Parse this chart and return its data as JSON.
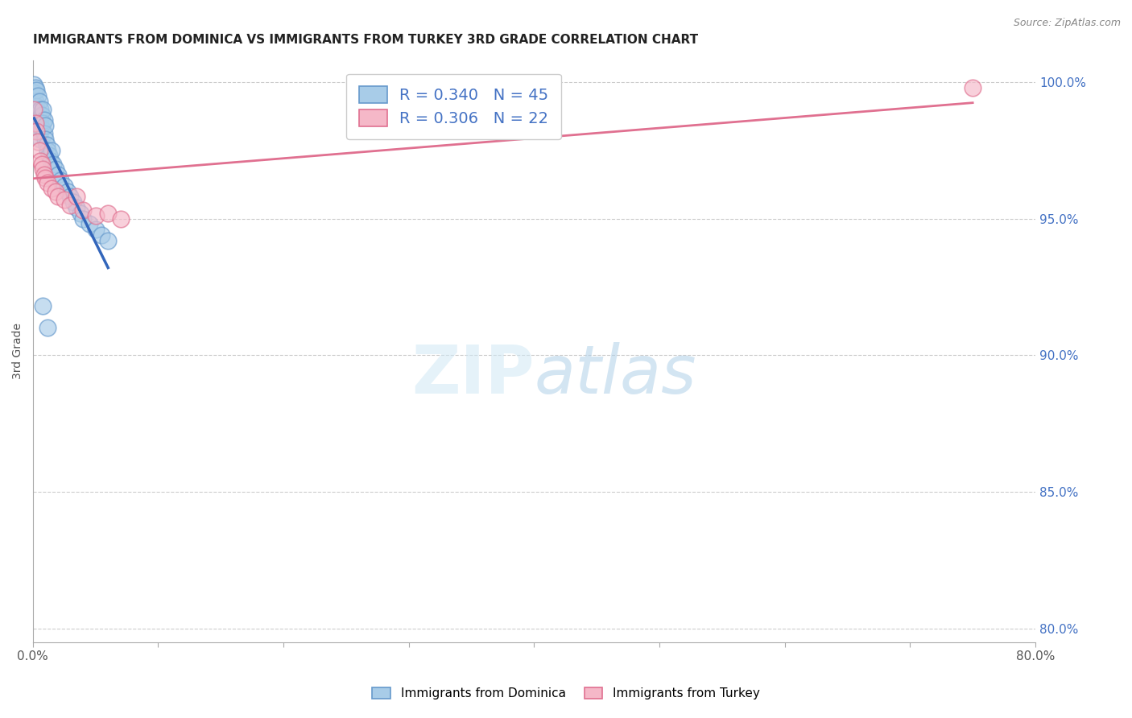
{
  "title": "IMMIGRANTS FROM DOMINICA VS IMMIGRANTS FROM TURKEY 3RD GRADE CORRELATION CHART",
  "source": "Source: ZipAtlas.com",
  "ylabel": "3rd Grade",
  "watermark": "ZIPatlas",
  "x_min": 0.0,
  "x_max": 0.8,
  "y_min": 0.795,
  "y_max": 1.008,
  "x_ticks": [
    0.0,
    0.1,
    0.2,
    0.3,
    0.4,
    0.5,
    0.6,
    0.7,
    0.8
  ],
  "x_tick_labels": [
    "0.0%",
    "",
    "",
    "",
    "",
    "",
    "",
    "",
    "80.0%"
  ],
  "y_ticks": [
    0.8,
    0.85,
    0.9,
    0.95,
    1.0
  ],
  "y_tick_labels": [
    "80.0%",
    "85.0%",
    "90.0%",
    "95.0%",
    "100.0%"
  ],
  "dominica_color": "#a8cce8",
  "turkey_color": "#f5b8c8",
  "dominica_edge": "#6699cc",
  "turkey_edge": "#e07090",
  "trend_dominica_color": "#3366bb",
  "trend_turkey_color": "#e07090",
  "R_dominica": 0.34,
  "N_dominica": 45,
  "R_turkey": 0.306,
  "N_turkey": 22,
  "background_color": "#ffffff",
  "grid_color": "#cccccc",
  "title_fontsize": 11,
  "label_fontsize": 10,
  "tick_fontsize": 11,
  "legend_label_dominica": "Immigrants from Dominica",
  "legend_label_turkey": "Immigrants from Turkey",
  "dom_x": [
    0.001,
    0.001,
    0.002,
    0.002,
    0.003,
    0.003,
    0.003,
    0.004,
    0.004,
    0.005,
    0.005,
    0.005,
    0.006,
    0.006,
    0.006,
    0.007,
    0.007,
    0.008,
    0.008,
    0.009,
    0.009,
    0.01,
    0.01,
    0.011,
    0.012,
    0.013,
    0.014,
    0.015,
    0.016,
    0.018,
    0.02,
    0.022,
    0.025,
    0.028,
    0.03,
    0.032,
    0.035,
    0.038,
    0.04,
    0.045,
    0.05,
    0.055,
    0.06,
    0.008,
    0.012
  ],
  "dom_y": [
    0.999,
    0.996,
    0.998,
    0.993,
    0.997,
    0.991,
    0.986,
    0.995,
    0.989,
    0.993,
    0.987,
    0.982,
    0.99,
    0.984,
    0.979,
    0.988,
    0.983,
    0.99,
    0.985,
    0.986,
    0.981,
    0.984,
    0.979,
    0.977,
    0.975,
    0.973,
    0.971,
    0.975,
    0.97,
    0.968,
    0.966,
    0.964,
    0.962,
    0.96,
    0.958,
    0.956,
    0.954,
    0.952,
    0.95,
    0.948,
    0.946,
    0.944,
    0.942,
    0.918,
    0.91
  ],
  "turk_x": [
    0.001,
    0.002,
    0.003,
    0.004,
    0.005,
    0.006,
    0.007,
    0.008,
    0.009,
    0.01,
    0.012,
    0.015,
    0.018,
    0.02,
    0.025,
    0.03,
    0.035,
    0.04,
    0.05,
    0.06,
    0.07,
    0.75
  ],
  "turk_y": [
    0.99,
    0.985,
    0.982,
    0.978,
    0.975,
    0.971,
    0.97,
    0.968,
    0.966,
    0.965,
    0.963,
    0.961,
    0.96,
    0.958,
    0.957,
    0.955,
    0.958,
    0.953,
    0.951,
    0.952,
    0.95,
    0.998
  ]
}
